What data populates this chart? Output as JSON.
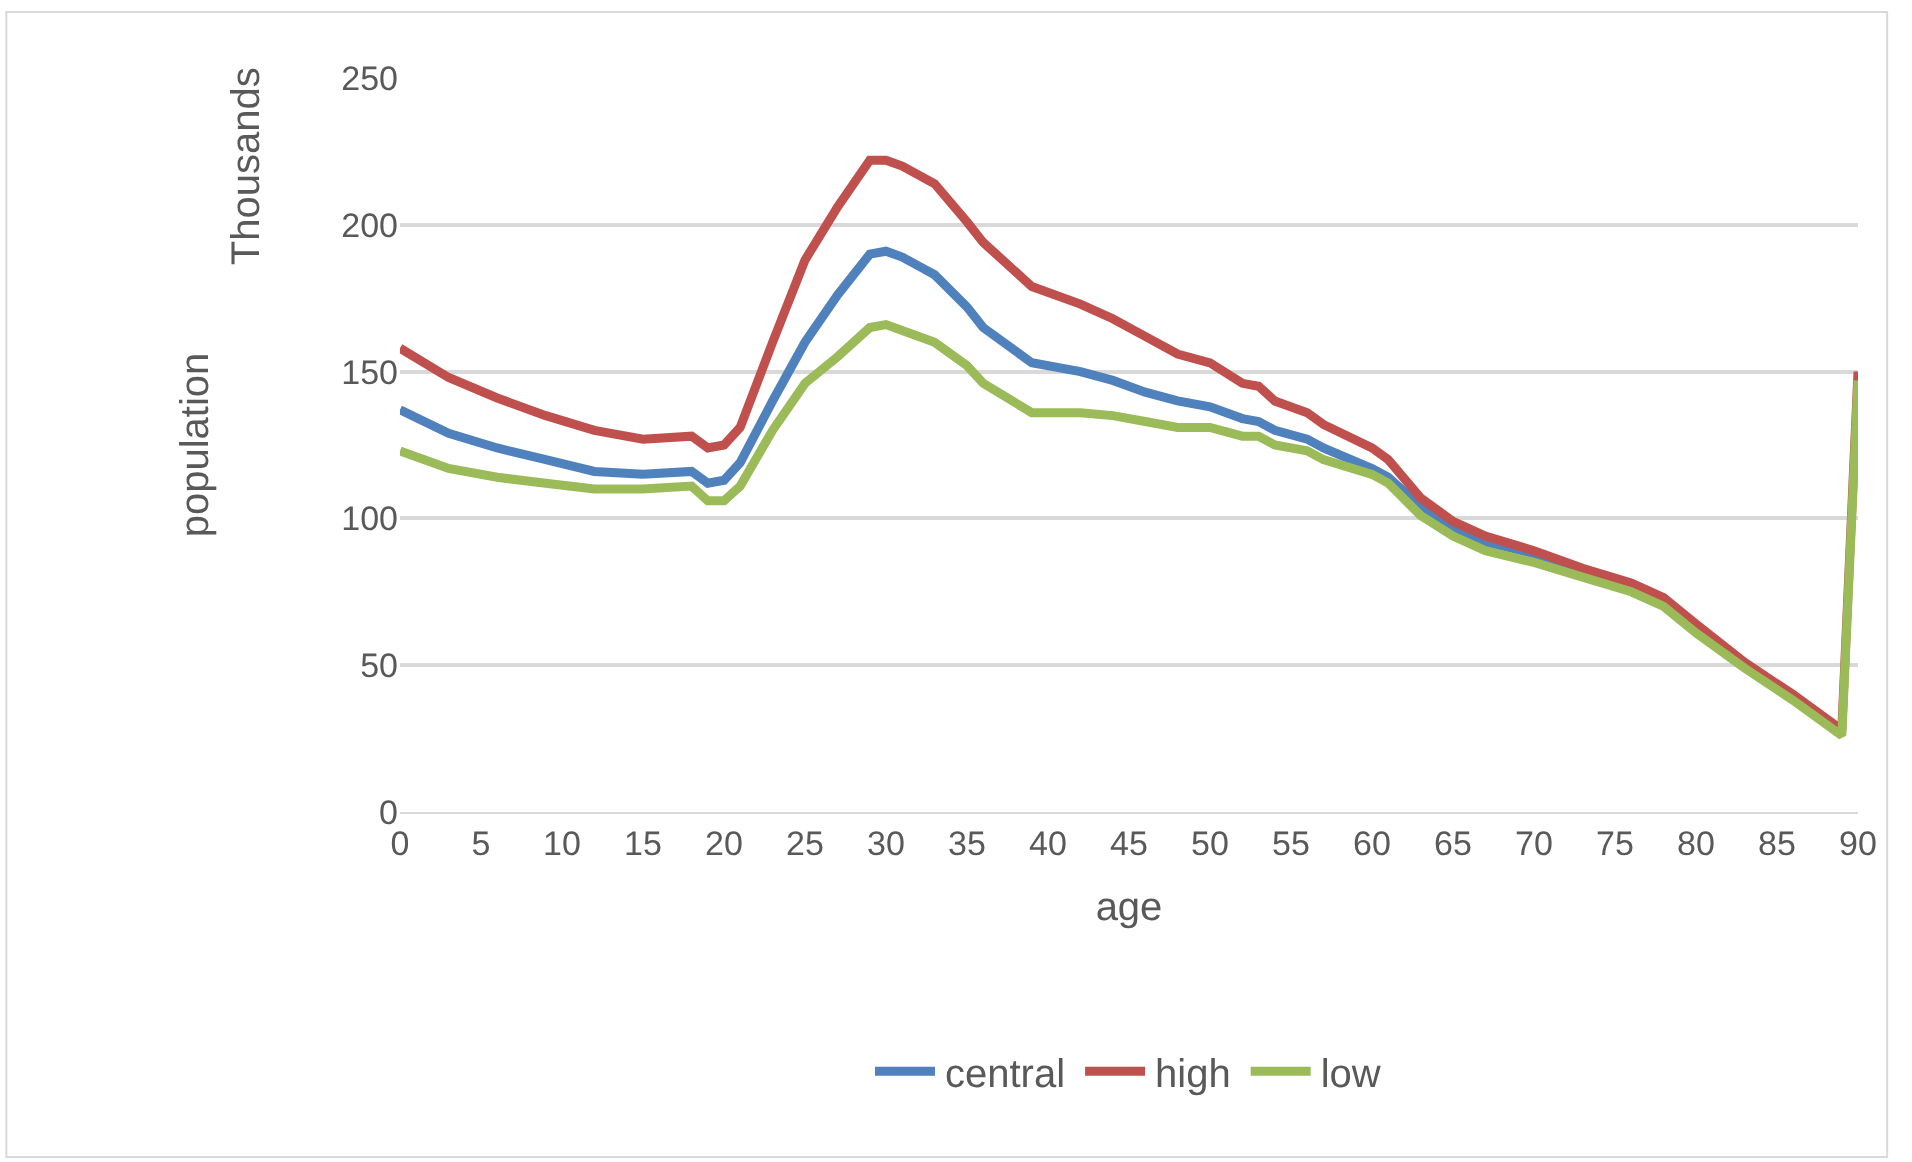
{
  "chart_data": {
    "type": "line",
    "xlabel": "age",
    "ylabel": "population",
    "annotations": [
      "Thousands"
    ],
    "xlim": [
      0,
      90
    ],
    "xticks": [
      0,
      5,
      10,
      15,
      20,
      25,
      30,
      35,
      40,
      45,
      50,
      55,
      60,
      65,
      70,
      75,
      80,
      85,
      90
    ],
    "ylim": [
      0,
      250
    ],
    "yticks": [
      0,
      50,
      100,
      150,
      200,
      250
    ],
    "grid": "y",
    "legend": "bottom",
    "line_style": "solid",
    "marker": "none",
    "series": [
      {
        "name": "central",
        "color": "#4f81bd",
        "x": [
          0,
          3,
          6,
          9,
          12,
          15,
          18,
          19,
          20,
          21,
          23,
          25,
          27,
          29,
          30,
          31,
          32,
          33,
          35,
          36,
          39,
          42,
          44,
          46,
          48,
          50,
          52,
          53,
          54,
          56,
          57,
          60,
          61,
          63,
          65,
          67,
          70,
          73,
          76
        ],
        "values": [
          137,
          129,
          124,
          120,
          116,
          115,
          116,
          112,
          113,
          119,
          140,
          160,
          176,
          190,
          191,
          189,
          186,
          183,
          172,
          165,
          153,
          150,
          147,
          143,
          140,
          138,
          134,
          133,
          130,
          127,
          124,
          117,
          114,
          104,
          97,
          92,
          88,
          82,
          76
        ]
      },
      {
        "name": "high",
        "color": "#c0504d",
        "x": [
          0,
          3,
          6,
          9,
          12,
          15,
          18,
          19,
          20,
          21,
          23,
          25,
          27,
          29,
          30,
          31,
          33,
          35,
          36,
          39,
          42,
          44,
          46,
          48,
          50,
          52,
          53,
          54,
          56,
          57,
          60,
          61,
          63,
          65,
          67,
          70,
          73,
          76,
          78,
          80,
          83,
          86,
          89,
          90
        ],
        "values": [
          158,
          148,
          141,
          135,
          130,
          127,
          128,
          124,
          125,
          131,
          160,
          188,
          206,
          222,
          222,
          220,
          214,
          201,
          194,
          179,
          173,
          168,
          162,
          156,
          153,
          146,
          145,
          140,
          136,
          132,
          124,
          120,
          107,
          99,
          94,
          89,
          83,
          78,
          73,
          64,
          51,
          40,
          28,
          150
        ]
      },
      {
        "name": "low",
        "color": "#9bbb59",
        "x": [
          0,
          3,
          6,
          9,
          12,
          15,
          18,
          19,
          20,
          21,
          23,
          25,
          27,
          29,
          30,
          31,
          33,
          35,
          36,
          39,
          42,
          44,
          46,
          48,
          50,
          52,
          53,
          54,
          56,
          57,
          60,
          61,
          63,
          65,
          67,
          70,
          73,
          76,
          78,
          80,
          83,
          86,
          89,
          90
        ],
        "values": [
          123,
          117,
          114,
          112,
          110,
          110,
          111,
          106,
          106,
          111,
          130,
          146,
          155,
          165,
          166,
          164,
          160,
          152,
          146,
          136,
          136,
          135,
          133,
          131,
          131,
          128,
          128,
          125,
          123,
          120,
          115,
          112,
          101,
          94,
          89,
          85,
          80,
          75,
          70,
          61,
          49,
          38,
          26,
          147
        ]
      }
    ]
  }
}
